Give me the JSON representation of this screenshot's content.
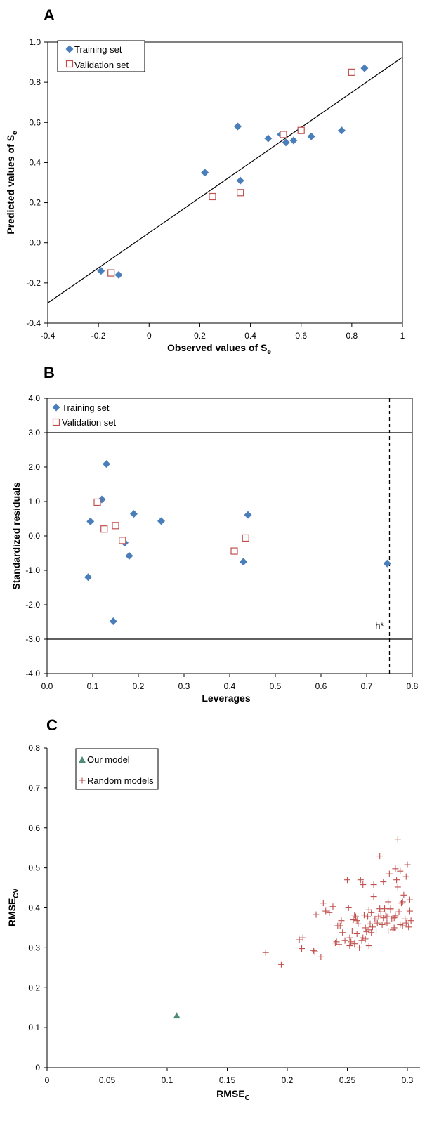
{
  "colors": {
    "training": "#4a7ebb",
    "validation": "#c0504d",
    "random": "#c0504d",
    "ourModel": "#4f8a7a",
    "axis": "#000000"
  },
  "chart_data": [
    {
      "panel": "A",
      "type": "scatter",
      "xlabel_prefix": "Observed values of S",
      "xlabel_sub": "e",
      "ylabel_prefix": "Predicted values of S",
      "ylabel_sub": "e",
      "xlim": [
        -0.4,
        1
      ],
      "ylim": [
        -0.4,
        1.0
      ],
      "x_ticks": [
        "-0.4",
        "-0.2",
        "0",
        "0.2",
        "0.4",
        "0.6",
        "0.8",
        "1"
      ],
      "y_ticks": [
        "-0.4",
        "-0.2",
        "0.0",
        "0.2",
        "0.4",
        "0.6",
        "0.8",
        "1.0"
      ],
      "legend_position": "top-left",
      "fit_line": {
        "x": [
          -0.4,
          1.0
        ],
        "y": [
          -0.3,
          0.925
        ]
      },
      "series": [
        {
          "name": "Training set",
          "marker": "diamond",
          "x": [
            -0.19,
            -0.12,
            0.22,
            0.35,
            0.36,
            0.47,
            0.52,
            0.54,
            0.57,
            0.64,
            0.76,
            0.85
          ],
          "y": [
            -0.14,
            -0.16,
            0.35,
            0.58,
            0.31,
            0.52,
            0.54,
            0.5,
            0.51,
            0.53,
            0.56,
            0.87
          ]
        },
        {
          "name": "Validation set",
          "marker": "open-square",
          "x": [
            -0.15,
            0.25,
            0.36,
            0.53,
            0.6,
            0.8
          ],
          "y": [
            -0.15,
            0.23,
            0.25,
            0.54,
            0.56,
            0.85
          ]
        }
      ]
    },
    {
      "panel": "B",
      "type": "scatter",
      "xlabel": "Leverages",
      "ylabel": "Standardized residuals",
      "xlim": [
        0,
        0.8
      ],
      "ylim": [
        -4.0,
        4.0
      ],
      "x_ticks": [
        "0.0",
        "0.1",
        "0.2",
        "0.3",
        "0.4",
        "0.5",
        "0.6",
        "0.7",
        "0.8"
      ],
      "y_ticks": [
        "-4.0",
        "-3.0",
        "-2.0",
        "-1.0",
        "0.0",
        "1.0",
        "2.0",
        "3.0",
        "4.0"
      ],
      "legend_position": "top-left",
      "h_lines": [
        3.0,
        -3.0
      ],
      "h_star": {
        "x": 0.75,
        "label": "h*"
      },
      "series": [
        {
          "name": "Training set",
          "marker": "diamond",
          "x": [
            0.09,
            0.095,
            0.12,
            0.13,
            0.145,
            0.17,
            0.18,
            0.19,
            0.25,
            0.43,
            0.44,
            0.745
          ],
          "y": [
            -1.2,
            0.42,
            1.06,
            2.09,
            -2.48,
            -0.2,
            -0.58,
            0.64,
            0.43,
            -0.75,
            0.61,
            -0.8
          ]
        },
        {
          "name": "Validation set",
          "marker": "open-square",
          "x": [
            0.11,
            0.125,
            0.15,
            0.165,
            0.41,
            0.435
          ],
          "y": [
            0.98,
            0.2,
            0.3,
            -0.13,
            -0.44,
            -0.06
          ]
        }
      ]
    },
    {
      "panel": "C",
      "type": "scatter",
      "xlabel_prefix": "RMSE",
      "xlabel_sub": "C",
      "ylabel_prefix": "RMSE",
      "ylabel_sub": "CV",
      "xlim": [
        0,
        0.3
      ],
      "ylim": [
        0,
        0.8
      ],
      "x_ticks": [
        "0",
        "0.05",
        "0.1",
        "0.15",
        "0.2",
        "0.25",
        "0.3"
      ],
      "y_ticks": [
        "0",
        "0.1",
        "0.2",
        "0.3",
        "0.4",
        "0.5",
        "0.6",
        "0.7",
        "0.8"
      ],
      "legend_position": "top-left",
      "series": [
        {
          "name": "Our model",
          "marker": "triangle",
          "x": [
            0.108
          ],
          "y": [
            0.13
          ]
        },
        {
          "name": "Random models",
          "marker": "plus",
          "x": [
            0.182,
            0.195,
            0.21,
            0.212,
            0.213,
            0.222,
            0.223,
            0.224,
            0.228,
            0.23,
            0.232,
            0.235,
            0.238,
            0.24,
            0.241,
            0.242,
            0.243,
            0.245,
            0.246,
            0.248,
            0.25,
            0.251,
            0.252,
            0.252,
            0.253,
            0.254,
            0.255,
            0.256,
            0.257,
            0.258,
            0.259,
            0.26,
            0.261,
            0.262,
            0.263,
            0.264,
            0.265,
            0.265,
            0.266,
            0.267,
            0.268,
            0.268,
            0.269,
            0.27,
            0.27,
            0.271,
            0.272,
            0.273,
            0.274,
            0.275,
            0.276,
            0.277,
            0.278,
            0.279,
            0.28,
            0.28,
            0.281,
            0.282,
            0.283,
            0.284,
            0.285,
            0.286,
            0.287,
            0.288,
            0.289,
            0.29,
            0.29,
            0.291,
            0.292,
            0.293,
            0.294,
            0.295,
            0.296,
            0.297,
            0.298,
            0.299,
            0.3,
            0.301,
            0.302,
            0.303,
            0.258,
            0.263,
            0.272,
            0.278,
            0.284,
            0.289,
            0.294,
            0.298,
            0.302,
            0.268,
            0.274,
            0.286,
            0.292,
            0.296,
            0.244,
            0.256,
            0.277,
            0.283,
            0.299
          ],
          "y": [
            0.288,
            0.258,
            0.32,
            0.298,
            0.325,
            0.293,
            0.29,
            0.383,
            0.277,
            0.412,
            0.392,
            0.388,
            0.403,
            0.312,
            0.315,
            0.355,
            0.308,
            0.368,
            0.338,
            0.318,
            0.47,
            0.4,
            0.325,
            0.305,
            0.315,
            0.342,
            0.37,
            0.382,
            0.378,
            0.335,
            0.36,
            0.3,
            0.47,
            0.318,
            0.458,
            0.382,
            0.35,
            0.322,
            0.34,
            0.378,
            0.395,
            0.305,
            0.36,
            0.388,
            0.338,
            0.352,
            0.428,
            0.372,
            0.342,
            0.362,
            0.378,
            0.53,
            0.39,
            0.358,
            0.465,
            0.375,
            0.398,
            0.382,
            0.362,
            0.342,
            0.485,
            0.395,
            0.372,
            0.345,
            0.35,
            0.498,
            0.38,
            0.47,
            0.572,
            0.39,
            0.358,
            0.412,
            0.355,
            0.432,
            0.372,
            0.478,
            0.508,
            0.352,
            0.392,
            0.368,
            0.368,
            0.325,
            0.458,
            0.382,
            0.415,
            0.375,
            0.492,
            0.372,
            0.42,
            0.345,
            0.372,
            0.398,
            0.452,
            0.415,
            0.355,
            0.31,
            0.398,
            0.378,
            0.362
          ]
        }
      ]
    }
  ]
}
